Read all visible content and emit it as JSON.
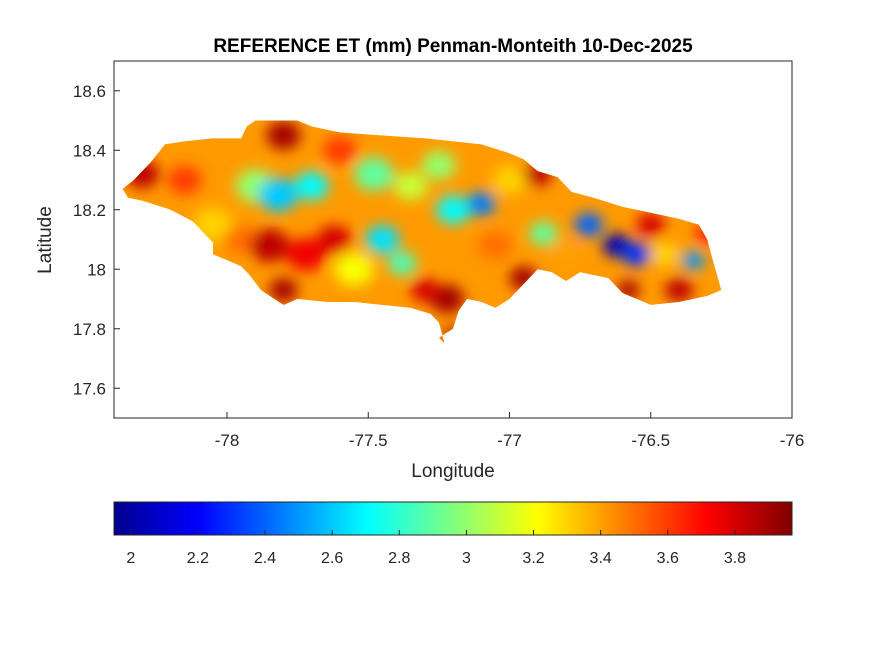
{
  "title": "REFERENCE ET (mm) Penman-Monteith 10-Dec-2025",
  "map": {
    "xlabel": "Longitude",
    "ylabel": "Latitude",
    "xlim": [
      -78.4,
      -76
    ],
    "ylim": [
      17.5,
      18.7
    ],
    "xticks": [
      {
        "value": -78,
        "label": "-78"
      },
      {
        "value": -77.5,
        "label": "-77.5"
      },
      {
        "value": -77,
        "label": "-77"
      },
      {
        "value": -76.5,
        "label": "-76.5"
      },
      {
        "value": -76,
        "label": "-76"
      }
    ],
    "yticks": [
      {
        "value": 17.6,
        "label": "17.6"
      },
      {
        "value": 17.8,
        "label": "17.8"
      },
      {
        "value": 18,
        "label": "18"
      },
      {
        "value": 18.2,
        "label": "18.2"
      },
      {
        "value": 18.4,
        "label": "18.4"
      },
      {
        "value": 18.6,
        "label": "18.6"
      }
    ],
    "colormap": "jet",
    "outline": [
      [
        -78.37,
        18.27
      ],
      [
        -78.33,
        18.3
      ],
      [
        -78.3,
        18.33
      ],
      [
        -78.27,
        18.36
      ],
      [
        -78.22,
        18.42
      ],
      [
        -78.15,
        18.43
      ],
      [
        -78.05,
        18.44
      ],
      [
        -77.95,
        18.44
      ],
      [
        -77.93,
        18.48
      ],
      [
        -77.9,
        18.5
      ],
      [
        -77.75,
        18.5
      ],
      [
        -77.7,
        18.48
      ],
      [
        -77.6,
        18.46
      ],
      [
        -77.45,
        18.45
      ],
      [
        -77.3,
        18.44
      ],
      [
        -77.2,
        18.43
      ],
      [
        -77.1,
        18.42
      ],
      [
        -77.0,
        18.39
      ],
      [
        -76.95,
        18.37
      ],
      [
        -76.9,
        18.33
      ],
      [
        -76.83,
        18.31
      ],
      [
        -76.78,
        18.26
      ],
      [
        -76.7,
        18.24
      ],
      [
        -76.6,
        18.21
      ],
      [
        -76.5,
        18.19
      ],
      [
        -76.4,
        18.17
      ],
      [
        -76.33,
        18.15
      ],
      [
        -76.3,
        18.1
      ],
      [
        -76.28,
        18.03
      ],
      [
        -76.25,
        17.93
      ],
      [
        -76.3,
        17.91
      ],
      [
        -76.4,
        17.89
      ],
      [
        -76.5,
        17.88
      ],
      [
        -76.6,
        17.92
      ],
      [
        -76.65,
        17.97
      ],
      [
        -76.7,
        17.98
      ],
      [
        -76.75,
        17.99
      ],
      [
        -76.8,
        17.96
      ],
      [
        -76.85,
        17.99
      ],
      [
        -76.9,
        18.0
      ],
      [
        -76.95,
        17.95
      ],
      [
        -77.0,
        17.9
      ],
      [
        -77.05,
        17.87
      ],
      [
        -77.1,
        17.89
      ],
      [
        -77.15,
        17.9
      ],
      [
        -77.18,
        17.86
      ],
      [
        -77.2,
        17.8
      ],
      [
        -77.25,
        17.77
      ],
      [
        -77.23,
        17.75
      ],
      [
        -77.25,
        17.82
      ],
      [
        -77.28,
        17.85
      ],
      [
        -77.35,
        17.87
      ],
      [
        -77.45,
        17.88
      ],
      [
        -77.55,
        17.89
      ],
      [
        -77.65,
        17.89
      ],
      [
        -77.75,
        17.9
      ],
      [
        -77.8,
        17.88
      ],
      [
        -77.88,
        17.93
      ],
      [
        -77.92,
        17.98
      ],
      [
        -77.95,
        18.01
      ],
      [
        -78.0,
        18.03
      ],
      [
        -78.05,
        18.05
      ],
      [
        -78.05,
        18.09
      ],
      [
        -78.12,
        18.16
      ],
      [
        -78.2,
        18.2
      ],
      [
        -78.3,
        18.23
      ],
      [
        -78.35,
        18.24
      ]
    ],
    "field": [
      {
        "lon": -78.3,
        "lat": 18.32,
        "value": 3.85,
        "r": 0.06
      },
      {
        "lon": -78.15,
        "lat": 18.3,
        "value": 3.6,
        "r": 0.06
      },
      {
        "lon": -78.05,
        "lat": 18.15,
        "value": 3.3,
        "r": 0.07
      },
      {
        "lon": -77.95,
        "lat": 18.1,
        "value": 3.5,
        "r": 0.06
      },
      {
        "lon": -77.9,
        "lat": 18.28,
        "value": 3.0,
        "r": 0.07
      },
      {
        "lon": -77.82,
        "lat": 18.25,
        "value": 2.6,
        "r": 0.07
      },
      {
        "lon": -77.7,
        "lat": 18.28,
        "value": 2.7,
        "r": 0.06
      },
      {
        "lon": -77.8,
        "lat": 18.45,
        "value": 3.9,
        "r": 0.06
      },
      {
        "lon": -77.6,
        "lat": 18.4,
        "value": 3.6,
        "r": 0.06
      },
      {
        "lon": -77.85,
        "lat": 18.08,
        "value": 3.85,
        "r": 0.07
      },
      {
        "lon": -77.72,
        "lat": 18.05,
        "value": 3.75,
        "r": 0.07
      },
      {
        "lon": -77.8,
        "lat": 17.93,
        "value": 3.9,
        "r": 0.05
      },
      {
        "lon": -77.62,
        "lat": 18.1,
        "value": 3.8,
        "r": 0.06
      },
      {
        "lon": -77.55,
        "lat": 18.0,
        "value": 3.2,
        "r": 0.07
      },
      {
        "lon": -77.45,
        "lat": 18.1,
        "value": 2.65,
        "r": 0.06
      },
      {
        "lon": -77.38,
        "lat": 18.02,
        "value": 2.85,
        "r": 0.05
      },
      {
        "lon": -77.48,
        "lat": 18.32,
        "value": 2.9,
        "r": 0.07
      },
      {
        "lon": -77.35,
        "lat": 18.28,
        "value": 3.1,
        "r": 0.06
      },
      {
        "lon": -77.25,
        "lat": 18.35,
        "value": 3.0,
        "r": 0.06
      },
      {
        "lon": -77.2,
        "lat": 18.2,
        "value": 2.7,
        "r": 0.06
      },
      {
        "lon": -77.1,
        "lat": 18.22,
        "value": 2.45,
        "r": 0.05
      },
      {
        "lon": -77.22,
        "lat": 17.9,
        "value": 3.9,
        "r": 0.06
      },
      {
        "lon": -77.3,
        "lat": 17.93,
        "value": 3.8,
        "r": 0.05
      },
      {
        "lon": -77.2,
        "lat": 17.78,
        "value": 3.9,
        "r": 0.03
      },
      {
        "lon": -77.05,
        "lat": 18.08,
        "value": 3.5,
        "r": 0.06
      },
      {
        "lon": -77.0,
        "lat": 18.3,
        "value": 3.3,
        "r": 0.06
      },
      {
        "lon": -76.9,
        "lat": 18.32,
        "value": 3.85,
        "r": 0.05
      },
      {
        "lon": -76.95,
        "lat": 17.97,
        "value": 3.9,
        "r": 0.05
      },
      {
        "lon": -76.88,
        "lat": 18.12,
        "value": 2.9,
        "r": 0.05
      },
      {
        "lon": -76.8,
        "lat": 18.05,
        "value": 3.4,
        "r": 0.05
      },
      {
        "lon": -76.72,
        "lat": 18.15,
        "value": 2.4,
        "r": 0.05
      },
      {
        "lon": -76.62,
        "lat": 18.08,
        "value": 2.05,
        "r": 0.05
      },
      {
        "lon": -76.55,
        "lat": 18.05,
        "value": 2.3,
        "r": 0.05
      },
      {
        "lon": -76.5,
        "lat": 18.15,
        "value": 3.8,
        "r": 0.05
      },
      {
        "lon": -76.45,
        "lat": 18.05,
        "value": 3.3,
        "r": 0.05
      },
      {
        "lon": -76.35,
        "lat": 18.03,
        "value": 2.5,
        "r": 0.04
      },
      {
        "lon": -76.4,
        "lat": 17.93,
        "value": 3.85,
        "r": 0.05
      },
      {
        "lon": -76.58,
        "lat": 17.93,
        "value": 3.9,
        "r": 0.04
      },
      {
        "lon": -76.3,
        "lat": 18.12,
        "value": 3.7,
        "r": 0.04
      }
    ]
  },
  "colorbar": {
    "range": [
      1.95,
      3.97
    ],
    "ticks": [
      {
        "value": 2,
        "label": "2"
      },
      {
        "value": 2.2,
        "label": "2.2"
      },
      {
        "value": 2.4,
        "label": "2.4"
      },
      {
        "value": 2.6,
        "label": "2.6"
      },
      {
        "value": 2.8,
        "label": "2.8"
      },
      {
        "value": 3,
        "label": "3"
      },
      {
        "value": 3.2,
        "label": "3.2"
      },
      {
        "value": 3.4,
        "label": "3.4"
      },
      {
        "value": 3.6,
        "label": "3.6"
      },
      {
        "value": 3.8,
        "label": "3.8"
      }
    ]
  }
}
